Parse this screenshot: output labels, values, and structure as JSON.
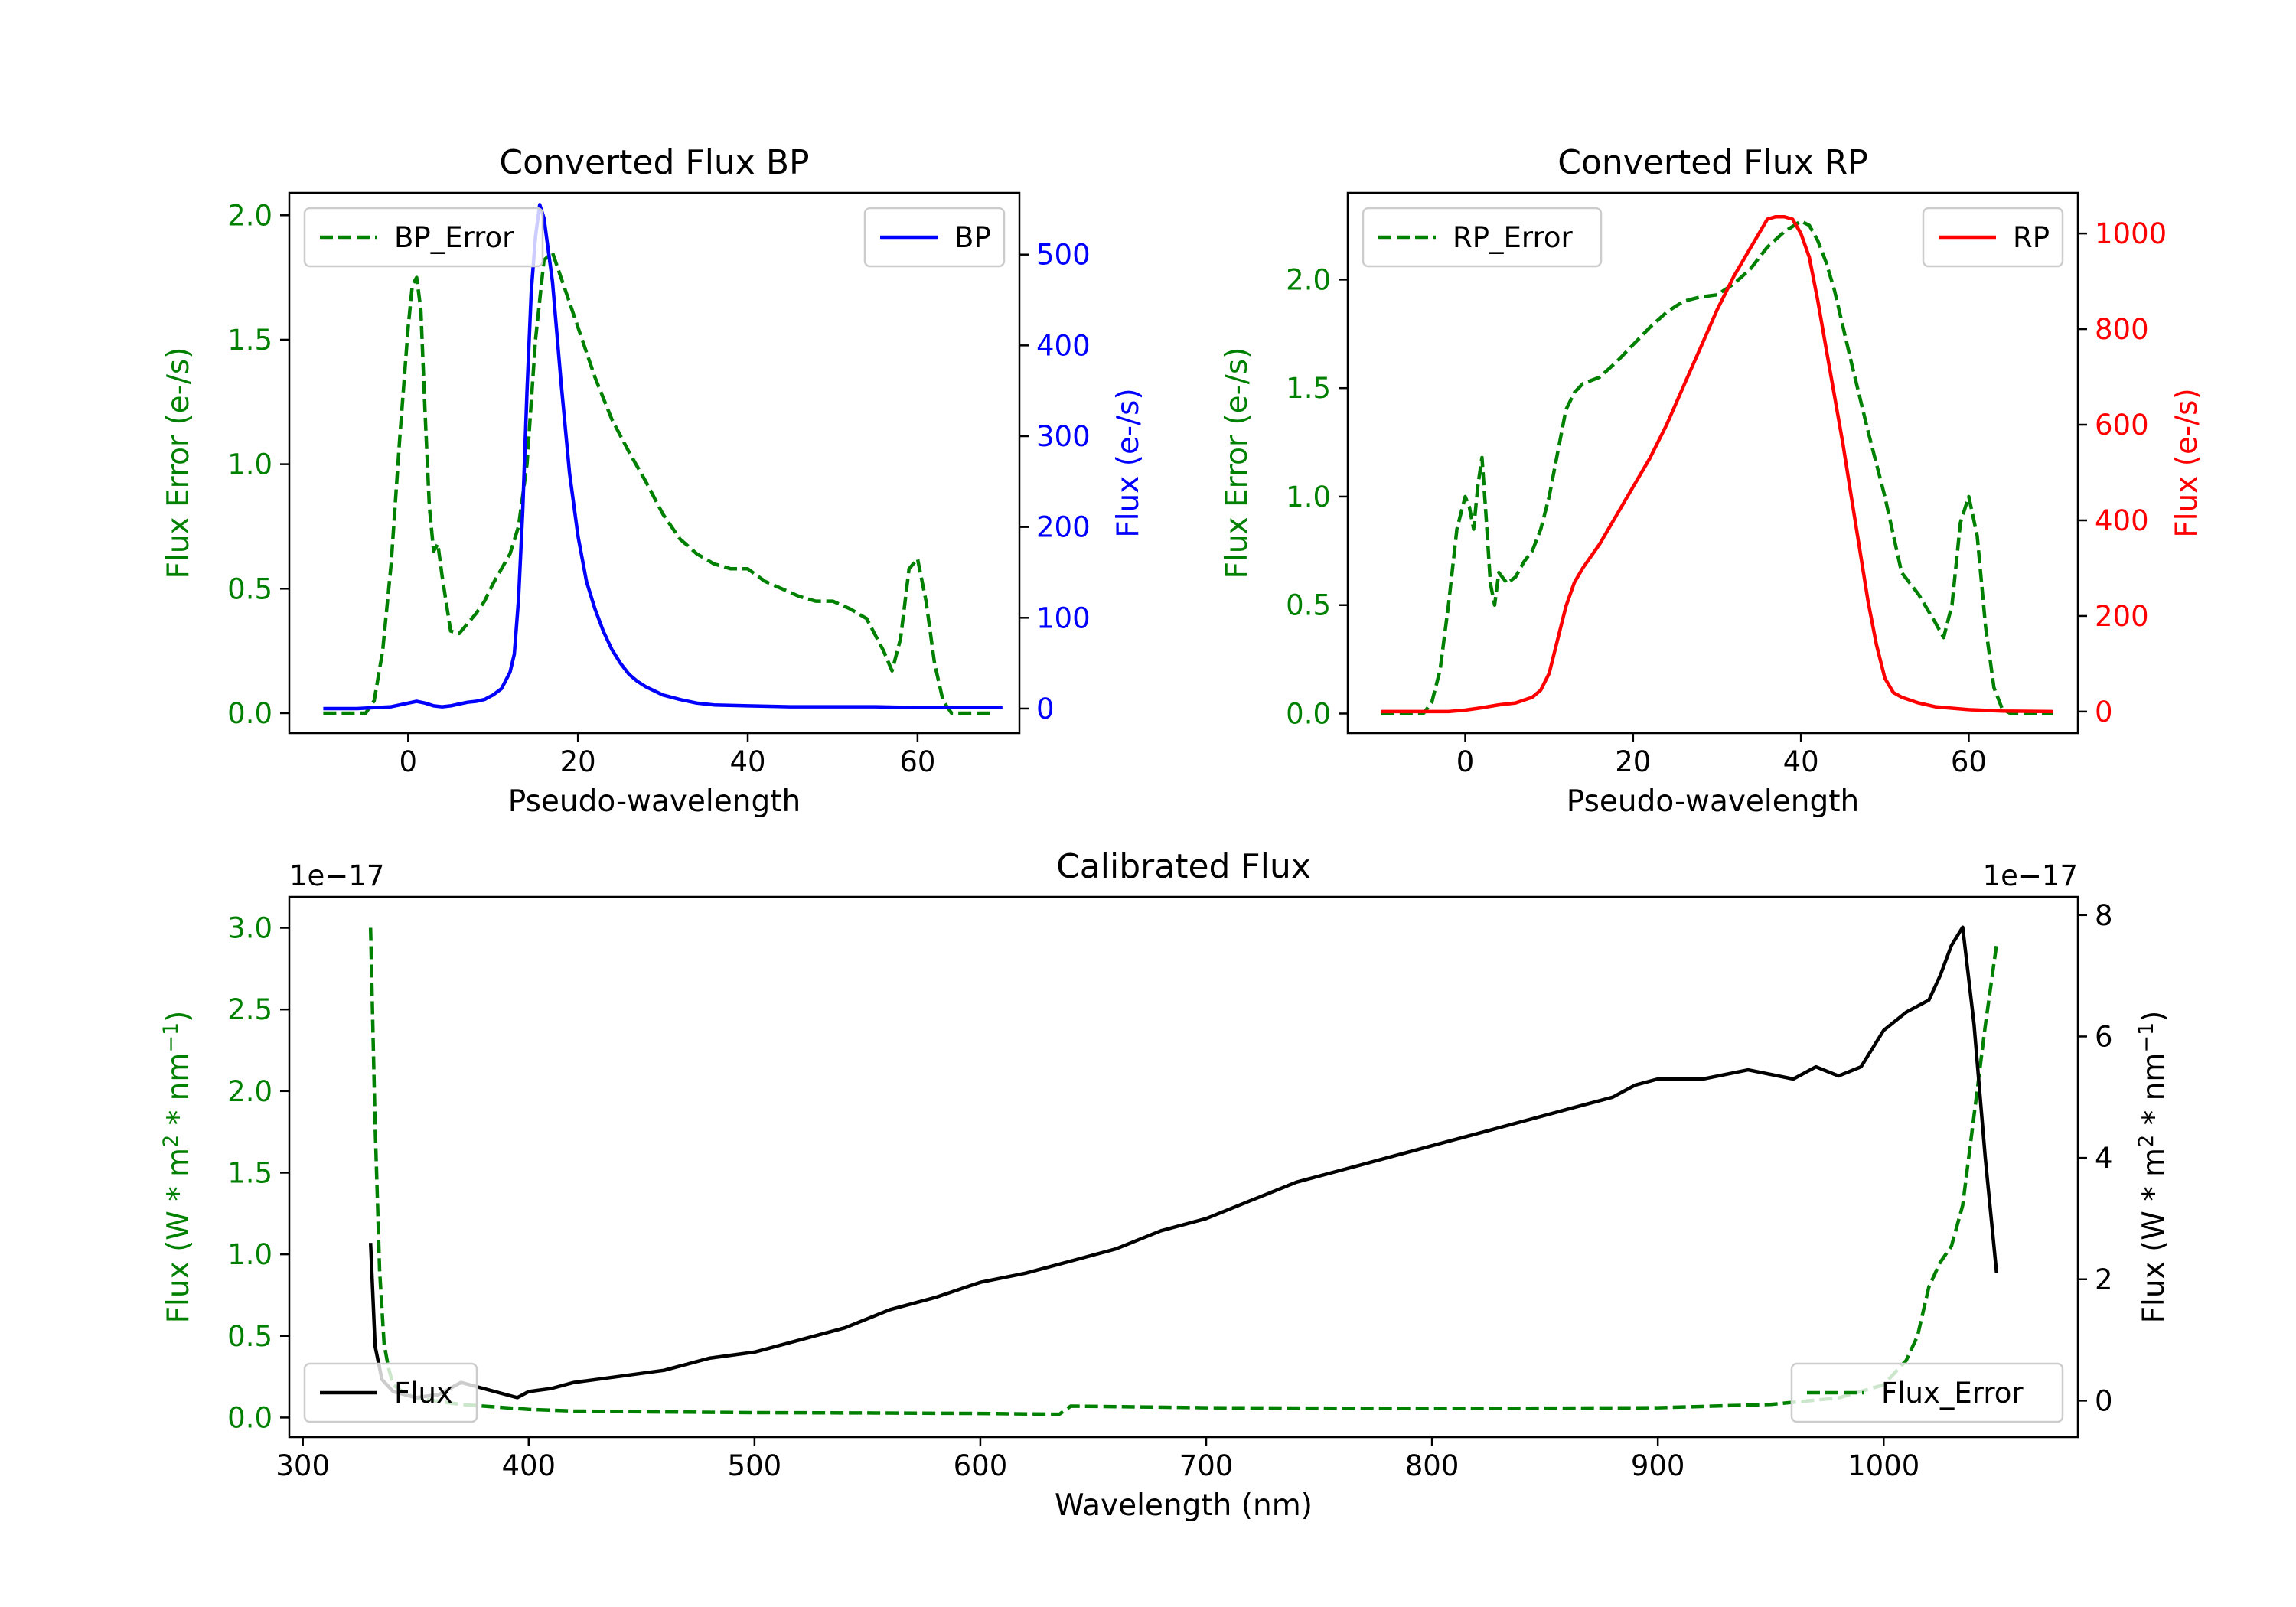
{
  "figure": {
    "background": "#ffffff"
  },
  "chart_data": [
    {
      "id": "bp",
      "type": "line",
      "title": "Converted Flux BP",
      "xlabel": "Pseudo-wavelength",
      "ylabel_left": "Flux Error (e-/s)",
      "ylabel_right": "Flux (e-/s)",
      "xlim": [
        -14,
        72
      ],
      "xticks": [
        0,
        20,
        40,
        60
      ],
      "xtick_labels": [
        "0",
        "20",
        "40",
        "60"
      ],
      "ylim_left": [
        -0.08,
        2.09
      ],
      "yticks_left": [
        0.0,
        0.5,
        1.0,
        1.5,
        2.0
      ],
      "ytick_labels_left": [
        "0.0",
        "0.5",
        "1.0",
        "1.5",
        "2.0"
      ],
      "ylim_right": [
        -27,
        568
      ],
      "yticks_right": [
        0,
        100,
        200,
        300,
        400,
        500
      ],
      "ytick_labels_right": [
        "0",
        "100",
        "200",
        "300",
        "400",
        "500"
      ],
      "left_color": "#008000",
      "right_color": "#0000ff",
      "series": [
        {
          "name": "BP_Error",
          "axis": "left",
          "color": "#008000",
          "dashed": true,
          "x": [
            -10,
            -5,
            -4,
            -3,
            -2,
            -1,
            0,
            0.5,
            1,
            1.5,
            2,
            2.5,
            3,
            3.5,
            4,
            5,
            6,
            7,
            8,
            9,
            10,
            11,
            12,
            13,
            14,
            15,
            16,
            17,
            18,
            20,
            22,
            24,
            26,
            28,
            30,
            32,
            34,
            36,
            38,
            40,
            42,
            44,
            46,
            48,
            50,
            52,
            54,
            56,
            57,
            58,
            59,
            60,
            61,
            62,
            63,
            64,
            65,
            66,
            67,
            68,
            69
          ],
          "y": [
            0,
            0,
            0.05,
            0.25,
            0.6,
            1.1,
            1.55,
            1.72,
            1.75,
            1.62,
            1.2,
            0.83,
            0.65,
            0.68,
            0.55,
            0.33,
            0.32,
            0.36,
            0.4,
            0.45,
            0.52,
            0.58,
            0.64,
            0.75,
            1.0,
            1.5,
            1.82,
            1.85,
            1.75,
            1.55,
            1.35,
            1.18,
            1.05,
            0.93,
            0.8,
            0.7,
            0.64,
            0.6,
            0.58,
            0.58,
            0.53,
            0.5,
            0.47,
            0.45,
            0.45,
            0.42,
            0.38,
            0.25,
            0.17,
            0.3,
            0.58,
            0.62,
            0.45,
            0.2,
            0.05,
            0,
            0,
            0,
            0,
            0,
            0
          ]
        },
        {
          "name": "BP",
          "axis": "right",
          "color": "#0000ff",
          "dashed": false,
          "x": [
            -10,
            -6,
            -4,
            -2,
            -1,
            0,
            1,
            2,
            3,
            4,
            5,
            6,
            7,
            8,
            9,
            10,
            11,
            12,
            12.5,
            13,
            13.5,
            14,
            14.5,
            15,
            15.5,
            16,
            17,
            18,
            19,
            20,
            21,
            22,
            23,
            24,
            25,
            26,
            27,
            28,
            30,
            32,
            34,
            36,
            40,
            45,
            50,
            55,
            60,
            65,
            70
          ],
          "y": [
            0,
            0,
            1,
            2,
            4,
            6,
            8,
            6,
            3,
            2,
            3,
            5,
            7,
            8,
            10,
            15,
            22,
            40,
            60,
            120,
            220,
            350,
            460,
            520,
            555,
            540,
            470,
            360,
            260,
            190,
            140,
            110,
            85,
            65,
            50,
            38,
            30,
            24,
            15,
            10,
            6,
            4,
            3,
            2,
            2,
            2,
            1,
            1,
            1
          ]
        }
      ],
      "legends": [
        {
          "label": "BP_Error",
          "location": "upper left"
        },
        {
          "label": "BP",
          "location": "upper right"
        }
      ]
    },
    {
      "id": "rp",
      "type": "line",
      "title": "Converted Flux RP",
      "xlabel": "Pseudo-wavelength",
      "ylabel_left": "Flux Error (e-/s)",
      "ylabel_right": "Flux (e-/s)",
      "xlim": [
        -14,
        73
      ],
      "xticks": [
        0,
        20,
        40,
        60
      ],
      "xtick_labels": [
        "0",
        "20",
        "40",
        "60"
      ],
      "ylim_left": [
        -0.09,
        2.4
      ],
      "yticks_left": [
        0.0,
        0.5,
        1.0,
        1.5,
        2.0
      ],
      "ytick_labels_left": [
        "0.0",
        "0.5",
        "1.0",
        "1.5",
        "2.0"
      ],
      "ylim_right": [
        -45,
        1085
      ],
      "yticks_right": [
        0,
        200,
        400,
        600,
        800,
        1000
      ],
      "ytick_labels_right": [
        "0",
        "200",
        "400",
        "600",
        "800",
        "1000"
      ],
      "left_color": "#008000",
      "right_color": "#ff0000",
      "series": [
        {
          "name": "RP_Error",
          "axis": "left",
          "color": "#008000",
          "dashed": true,
          "x": [
            -10,
            -5,
            -4,
            -3,
            -2,
            -1,
            0,
            0.5,
            1,
            1.5,
            2,
            2.5,
            3,
            3.5,
            4,
            5,
            6,
            7,
            8,
            9,
            10,
            11,
            12,
            13,
            14,
            16,
            18,
            20,
            22,
            24,
            26,
            28,
            30,
            32,
            34,
            36,
            38,
            40,
            41,
            42,
            43,
            44,
            46,
            48,
            50,
            52,
            54,
            56,
            57,
            58,
            59,
            60,
            61,
            62,
            63,
            64,
            65,
            66,
            70
          ],
          "y": [
            0,
            0,
            0.05,
            0.2,
            0.5,
            0.85,
            1.0,
            0.95,
            0.85,
            1.05,
            1.18,
            0.9,
            0.6,
            0.5,
            0.65,
            0.6,
            0.63,
            0.7,
            0.75,
            0.85,
            1.0,
            1.2,
            1.4,
            1.48,
            1.52,
            1.55,
            1.62,
            1.7,
            1.78,
            1.85,
            1.9,
            1.92,
            1.93,
            1.98,
            2.05,
            2.15,
            2.22,
            2.27,
            2.25,
            2.18,
            2.08,
            1.95,
            1.62,
            1.3,
            1.0,
            0.65,
            0.55,
            0.42,
            0.35,
            0.5,
            0.88,
            1.0,
            0.82,
            0.4,
            0.12,
            0.02,
            0,
            0,
            0
          ]
        },
        {
          "name": "RP",
          "axis": "right",
          "color": "#ff0000",
          "dashed": false,
          "x": [
            -10,
            -4,
            -2,
            0,
            2,
            4,
            6,
            8,
            9,
            10,
            11,
            12,
            13,
            14,
            16,
            18,
            20,
            22,
            24,
            26,
            28,
            30,
            32,
            34,
            35,
            36,
            37,
            38,
            39,
            40,
            41,
            42,
            43,
            44,
            45,
            46,
            47,
            48,
            49,
            50,
            51,
            52,
            54,
            56,
            60,
            64,
            70
          ],
          "y": [
            0,
            0,
            0,
            3,
            8,
            14,
            18,
            30,
            45,
            80,
            150,
            220,
            270,
            300,
            350,
            410,
            470,
            530,
            600,
            680,
            760,
            840,
            910,
            970,
            1000,
            1030,
            1035,
            1035,
            1030,
            1000,
            950,
            860,
            760,
            660,
            560,
            450,
            340,
            230,
            140,
            70,
            40,
            30,
            18,
            10,
            4,
            1,
            0
          ]
        }
      ],
      "legends": [
        {
          "label": "RP_Error",
          "location": "upper left"
        },
        {
          "label": "RP",
          "location": "upper right"
        }
      ]
    },
    {
      "id": "cal",
      "type": "line",
      "title": "Calibrated Flux",
      "xlabel": "Wavelength (nm)",
      "ylabel_left": "Flux (W * m^2 * nm^-1)",
      "ylabel_right": "Flux (W * m^2 * nm^-1)",
      "offset_left": "1e−17",
      "offset_right": "1e−17",
      "xlim": [
        294,
        1086
      ],
      "xticks": [
        300,
        400,
        500,
        600,
        700,
        800,
        900,
        1000
      ],
      "xtick_labels": [
        "300",
        "400",
        "500",
        "600",
        "700",
        "800",
        "900",
        "1000"
      ],
      "ylim_left": [
        -0.12,
        3.19
      ],
      "yticks_left": [
        0.0,
        0.5,
        1.0,
        1.5,
        2.0,
        2.5,
        3.0
      ],
      "ytick_labels_left": [
        "0.0",
        "0.5",
        "1.0",
        "1.5",
        "2.0",
        "2.5",
        "3.0"
      ],
      "ylim_right": [
        -0.6,
        8.3
      ],
      "yticks_right": [
        0,
        2,
        4,
        6,
        8
      ],
      "ytick_labels_right": [
        "0",
        "2",
        "4",
        "6",
        "8"
      ],
      "left_color": "#008000",
      "right_color": "#000000",
      "series": [
        {
          "name": "Flux_Error",
          "axis": "left",
          "color": "#008000",
          "dashed": true,
          "x": [
            330,
            332,
            334,
            336,
            338,
            340,
            345,
            350,
            360,
            370,
            380,
            390,
            400,
            420,
            450,
            500,
            550,
            600,
            635,
            640,
            700,
            800,
            900,
            950,
            980,
            1000,
            1010,
            1015,
            1020,
            1025,
            1030,
            1035,
            1040,
            1045,
            1050
          ],
          "y": [
            3.0,
            1.8,
            0.9,
            0.45,
            0.3,
            0.2,
            0.15,
            0.12,
            0.1,
            0.08,
            0.07,
            0.06,
            0.05,
            0.04,
            0.035,
            0.03,
            0.028,
            0.025,
            0.02,
            0.07,
            0.06,
            0.055,
            0.06,
            0.08,
            0.12,
            0.2,
            0.35,
            0.5,
            0.8,
            0.95,
            1.05,
            1.3,
            1.85,
            2.4,
            2.9
          ]
        },
        {
          "name": "Flux",
          "axis": "right",
          "color": "#000000",
          "dashed": false,
          "x": [
            330,
            332,
            335,
            340,
            350,
            360,
            370,
            380,
            390,
            395,
            400,
            410,
            420,
            440,
            460,
            480,
            500,
            520,
            540,
            560,
            580,
            600,
            620,
            640,
            660,
            680,
            700,
            720,
            740,
            760,
            780,
            800,
            820,
            840,
            860,
            880,
            890,
            900,
            920,
            940,
            960,
            970,
            980,
            990,
            1000,
            1010,
            1020,
            1025,
            1030,
            1035,
            1040,
            1045,
            1050
          ],
          "y": [
            2.6,
            0.9,
            0.35,
            0.15,
            0.05,
            0.1,
            0.3,
            0.2,
            0.1,
            0.05,
            0.15,
            0.2,
            0.3,
            0.4,
            0.5,
            0.7,
            0.8,
            1.0,
            1.2,
            1.5,
            1.7,
            1.95,
            2.1,
            2.3,
            2.5,
            2.8,
            3.0,
            3.3,
            3.6,
            3.8,
            4.0,
            4.2,
            4.4,
            4.6,
            4.8,
            5.0,
            5.2,
            5.3,
            5.3,
            5.45,
            5.3,
            5.5,
            5.35,
            5.5,
            6.1,
            6.4,
            6.6,
            7.0,
            7.5,
            7.8,
            6.2,
            4.0,
            2.1
          ]
        }
      ],
      "legends": [
        {
          "label": "Flux",
          "location": "lower left"
        },
        {
          "label": "Flux_Error",
          "location": "lower right"
        }
      ]
    }
  ]
}
